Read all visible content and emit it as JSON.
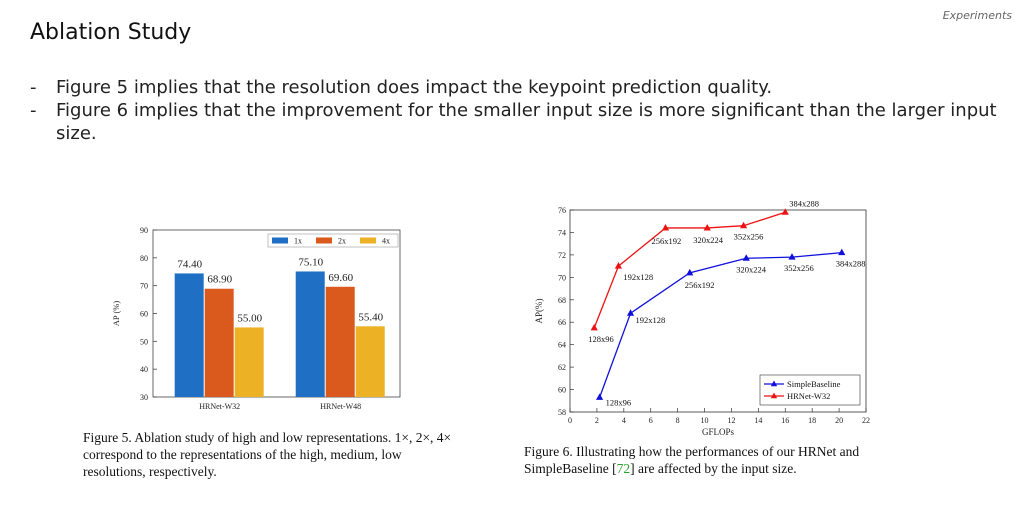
{
  "header": {
    "section": "Experiments",
    "title": "Ablation Study"
  },
  "bullets": [
    "Figure 5 implies that the resolution does impact the keypoint prediction quality.",
    "Figure 6 implies that the improvement for the smaller input size is more significant than the larger input size."
  ],
  "figure5": {
    "caption": "Figure 5. Ablation study of high and low representations. 1×, 2×, 4× correspond to the representations of the high, medium, low resolutions, respectively."
  },
  "figure6": {
    "caption_before": "Figure 6. Illustrating how the performances of our HRNet and SimpleBaseline [",
    "ref": "72",
    "caption_after": "] are affected by the input size."
  },
  "chart_data": [
    {
      "type": "bar",
      "ylabel": "AP (%)",
      "ylim": [
        30,
        90
      ],
      "yticks": [
        30,
        40,
        50,
        60,
        70,
        80,
        90
      ],
      "categories": [
        "HRNet-W32",
        "HRNet-W48"
      ],
      "series": [
        {
          "name": "1x",
          "color": "#1f6fc4",
          "values": [
            74.4,
            75.1
          ],
          "labels": [
            "74.40",
            "75.10"
          ]
        },
        {
          "name": "2x",
          "color": "#d95a1c",
          "values": [
            68.9,
            69.6
          ],
          "labels": [
            "68.90",
            "69.60"
          ]
        },
        {
          "name": "4x",
          "color": "#edb125",
          "values": [
            55.0,
            55.4
          ],
          "labels": [
            "55.00",
            "55.40"
          ]
        }
      ],
      "legend": "top-right"
    },
    {
      "type": "line",
      "xlabel": "GFLOPs",
      "ylabel": "AP(%)",
      "xlim": [
        0,
        22
      ],
      "ylim": [
        58,
        76
      ],
      "xticks": [
        0,
        2,
        4,
        6,
        8,
        10,
        12,
        14,
        16,
        18,
        20,
        22
      ],
      "yticks": [
        58,
        60,
        62,
        64,
        66,
        68,
        70,
        72,
        74,
        76
      ],
      "series": [
        {
          "name": "SimpleBaseline",
          "color": "#1010dd",
          "points": [
            [
              2.2,
              59.3
            ],
            [
              4.5,
              66.8
            ],
            [
              8.9,
              70.4
            ],
            [
              13.1,
              71.7
            ],
            [
              16.5,
              71.8
            ],
            [
              20.2,
              72.2
            ]
          ],
          "labels": [
            "128x96",
            "192x128",
            "256x192",
            "320x224",
            "352x256",
            "384x288"
          ]
        },
        {
          "name": "HRNet-W32",
          "color": "#ee1111",
          "points": [
            [
              1.8,
              65.5
            ],
            [
              3.6,
              71.0
            ],
            [
              7.1,
              74.4
            ],
            [
              10.2,
              74.4
            ],
            [
              12.9,
              74.6
            ],
            [
              16.0,
              75.8
            ]
          ],
          "labels": [
            "128x96",
            "192x128",
            "256x192",
            "320x224",
            "352x256",
            "384x288"
          ]
        }
      ],
      "legend": "bottom-right"
    }
  ]
}
